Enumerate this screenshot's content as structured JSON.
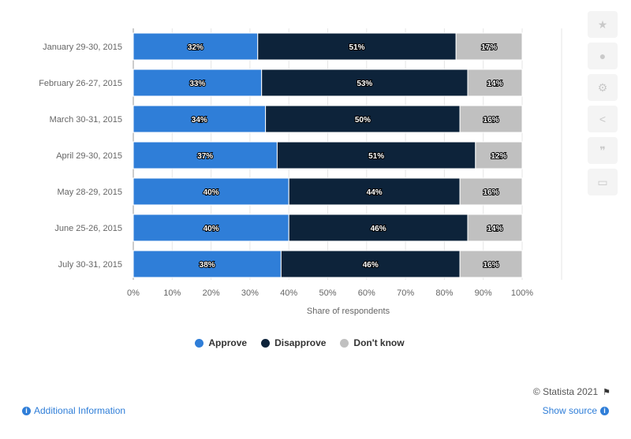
{
  "chart_data": {
    "type": "bar",
    "orientation": "horizontal",
    "stacked": true,
    "categories": [
      "January 29-30, 2015",
      "February 26-27, 2015",
      "March 30-31, 2015",
      "April 29-30, 2015",
      "May 28-29, 2015",
      "June 25-26, 2015",
      "July 30-31, 2015"
    ],
    "series": [
      {
        "name": "Approve",
        "color": "#2f7ed8",
        "values": [
          32,
          33,
          34,
          37,
          40,
          40,
          38
        ]
      },
      {
        "name": "Disapprove",
        "color": "#0d233a",
        "values": [
          51,
          53,
          50,
          51,
          44,
          46,
          46
        ]
      },
      {
        "name": "Don't know",
        "color": "#c0c0c0",
        "values": [
          17,
          14,
          16,
          12,
          16,
          14,
          16
        ]
      }
    ],
    "data_labels": [
      [
        "32%",
        "51%",
        "17%"
      ],
      [
        "33%",
        "53%",
        "14%"
      ],
      [
        "34%",
        "50%",
        "16%"
      ],
      [
        "37%",
        "51%",
        "12%"
      ],
      [
        "40%",
        "44%",
        "16%"
      ],
      [
        "40%",
        "46%",
        "14%"
      ],
      [
        "38%",
        "46%",
        "16%"
      ]
    ],
    "xlabel": "Share of respondents",
    "xlim": [
      0,
      100
    ],
    "xticks": [
      "0%",
      "10%",
      "20%",
      "30%",
      "40%",
      "50%",
      "60%",
      "70%",
      "80%",
      "90%",
      "100%"
    ],
    "grid": true,
    "legend_position": "bottom"
  },
  "legend": {
    "approve": "Approve",
    "disapprove": "Disapprove",
    "dont_know": "Don't know"
  },
  "credit": "© Statista 2021",
  "footer": {
    "additional_info": "Additional Information",
    "show_source": "Show source"
  },
  "sidebar": [
    "star-icon",
    "bell-icon",
    "gear-icon",
    "share-icon",
    "quote-icon",
    "print-icon"
  ]
}
